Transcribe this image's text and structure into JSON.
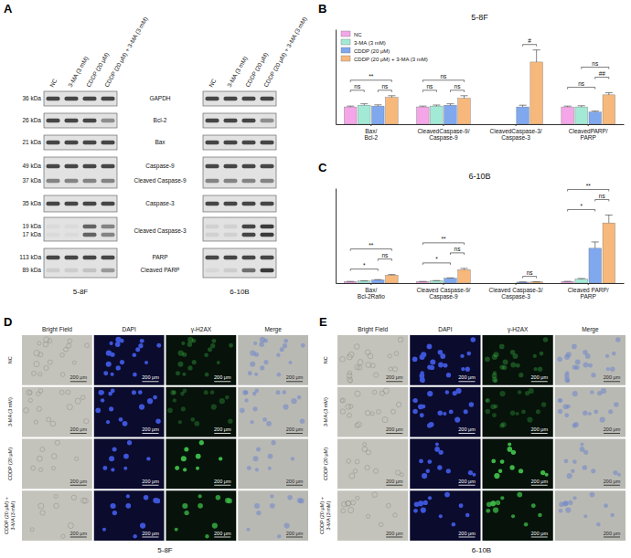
{
  "chart_data": [
    {
      "type": "bar",
      "panel_label": "B",
      "title": "5-8F",
      "categories": [
        "Bax/Bcl-2",
        "CleavedCaspase-9/Caspase-9",
        "CleavedCaspase-3/Caspase-3",
        "CleavedPARP/PARP"
      ],
      "series": [
        {
          "name": "NC",
          "color": "#f4a6e8",
          "values": [
            1,
            1,
            null,
            1
          ],
          "errors": [
            0.05,
            0.05,
            null,
            0.05
          ]
        },
        {
          "name": "3-MA (3 mM)",
          "color": "#a3ead6",
          "values": [
            1.1,
            1.05,
            null,
            1.0
          ],
          "errors": [
            0.08,
            0.06,
            null,
            0.07
          ]
        },
        {
          "name": "CDDP (20 μM)",
          "color": "#7fa8ef",
          "values": [
            1.05,
            1.1,
            1.0,
            0.7
          ],
          "errors": [
            0.07,
            0.08,
            0.1,
            0.06
          ]
        },
        {
          "name": "CDDP (20 μM) + 3-MA (3 mM)",
          "color": "#f7b87b",
          "values": [
            1.55,
            1.5,
            3.6,
            1.7
          ],
          "errors": [
            0.1,
            0.15,
            0.7,
            0.12
          ]
        }
      ],
      "ylim": [
        0,
        5.5
      ],
      "tick_labels": false,
      "legend": "top-left",
      "annotations": [
        {
          "text": "ns",
          "category": "Bax/Bcl-2",
          "between": [
            "NC",
            "3-MA (3 mM)"
          ]
        },
        {
          "text": "ns",
          "category": "Bax/Bcl-2",
          "between": [
            "CDDP (20 μM)",
            "CDDP (20 μM) + 3-MA (3 mM)"
          ]
        },
        {
          "text": "**",
          "category": "Bax/Bcl-2",
          "between": [
            "NC",
            "CDDP (20 μM) + 3-MA (3 mM)"
          ]
        },
        {
          "text": "ns",
          "category": "CleavedCaspase-9/Caspase-9",
          "between": [
            "NC",
            "3-MA (3 mM)"
          ]
        },
        {
          "text": "ns",
          "category": "CleavedCaspase-9/Caspase-9",
          "between": [
            "CDDP (20 μM)",
            "CDDP (20 μM) + 3-MA (3 mM)"
          ]
        },
        {
          "text": "ns",
          "category": "CleavedCaspase-9/Caspase-9",
          "between": [
            "NC",
            "CDDP (20 μM) + 3-MA (3 mM)"
          ]
        },
        {
          "text": "#",
          "category": "CleavedCaspase-3/Caspase-3",
          "between": [
            "CDDP (20 μM)",
            "CDDP (20 μM) + 3-MA (3 mM)"
          ]
        },
        {
          "text": "ns",
          "category": "CleavedPARP/PARP",
          "between": [
            "NC",
            "CDDP (20 μM)"
          ]
        },
        {
          "text": "##",
          "category": "CleavedPARP/PARP",
          "between": [
            "CDDP (20 μM)",
            "CDDP (20 μM) + 3-MA (3 mM)"
          ]
        },
        {
          "text": "ns",
          "category": "CleavedPARP/PARP",
          "between": [
            "3-MA (3 mM)",
            "CDDP (20 μM) + 3-MA (3 mM)"
          ]
        }
      ]
    },
    {
      "type": "bar",
      "panel_label": "C",
      "title": "6-10B",
      "categories": [
        "Bax/Bcl-2Ratio",
        "Cleaved Caspase-9/Caspase-9",
        "Cleaved Caspase-3/Caspase-3",
        "Cleaved PARP/PARP"
      ],
      "series": [
        {
          "name": "NC",
          "color": "#f4a6e8",
          "values": [
            1,
            1,
            null,
            1
          ],
          "errors": [
            0.05,
            0.05,
            null,
            0.1
          ]
        },
        {
          "name": "3-MA (3 mM)",
          "color": "#a3ead6",
          "values": [
            1.3,
            1.5,
            null,
            2.5
          ],
          "errors": [
            0.1,
            0.1,
            null,
            0.4
          ]
        },
        {
          "name": "CDDP (20 μM)",
          "color": "#7fa8ef",
          "values": [
            2.0,
            3.0,
            0.6,
            22
          ],
          "errors": [
            0.2,
            0.3,
            0.1,
            4
          ]
        },
        {
          "name": "CDDP (20 μM) + 3-MA (3 mM)",
          "color": "#f7b87b",
          "values": [
            5.0,
            8.5,
            0.7,
            38
          ],
          "errors": [
            0.4,
            0.8,
            0.1,
            5
          ]
        }
      ],
      "ylim": [
        0,
        60
      ],
      "tick_labels": false,
      "annotations": [
        {
          "text": "*",
          "category": "Bax/Bcl-2Ratio",
          "between": [
            "NC",
            "CDDP (20 μM)"
          ]
        },
        {
          "text": "ns",
          "category": "Bax/Bcl-2Ratio",
          "between": [
            "CDDP (20 μM)",
            "CDDP (20 μM) + 3-MA (3 mM)"
          ]
        },
        {
          "text": "**",
          "category": "Bax/Bcl-2Ratio",
          "between": [
            "NC",
            "CDDP (20 μM) + 3-MA (3 mM)"
          ]
        },
        {
          "text": "*",
          "category": "Cleaved Caspase-9/Caspase-9",
          "between": [
            "NC",
            "CDDP (20 μM)"
          ]
        },
        {
          "text": "ns",
          "category": "Cleaved Caspase-9/Caspase-9",
          "between": [
            "CDDP (20 μM)",
            "CDDP (20 μM) + 3-MA (3 mM)"
          ]
        },
        {
          "text": "**",
          "category": "Cleaved Caspase-9/Caspase-9",
          "between": [
            "NC",
            "CDDP (20 μM) + 3-MA (3 mM)"
          ]
        },
        {
          "text": "ns",
          "category": "Cleaved Caspase-3/Caspase-3",
          "between": [
            "CDDP (20 μM)",
            "CDDP (20 μM) + 3-MA (3 mM)"
          ]
        },
        {
          "text": "*",
          "category": "Cleaved PARP/PARP",
          "between": [
            "NC",
            "CDDP (20 μM)"
          ]
        },
        {
          "text": "ns",
          "category": "Cleaved PARP/PARP",
          "between": [
            "CDDP (20 μM)",
            "CDDP (20 μM) + 3-MA (3 mM)"
          ]
        },
        {
          "text": "**",
          "category": "Cleaved PARP/PARP",
          "between": [
            "NC",
            "CDDP (20 μM) + 3-MA (3 mM)"
          ]
        }
      ]
    }
  ],
  "blot": {
    "panel_label": "A",
    "lanes": [
      "NC",
      "3-MA (3 mM)",
      "CDDP (20 μM)",
      "CDDP (20 μM) + 3-MA (3 mM)"
    ],
    "cell_lines": [
      "5-8F",
      "6-10B"
    ],
    "rows": [
      {
        "proteins": [
          "GAPDH"
        ],
        "kda": [
          "36 kDa"
        ]
      },
      {
        "proteins": [
          "Bcl-2"
        ],
        "kda": [
          "26 kDa"
        ]
      },
      {
        "proteins": [
          "Bax"
        ],
        "kda": [
          "21 kDa"
        ]
      },
      {
        "proteins": [
          "Caspase-9",
          "Cleaved Caspase-9"
        ],
        "kda": [
          "49 kDa",
          "37 kDa"
        ]
      },
      {
        "proteins": [
          "Caspase-3"
        ],
        "kda": [
          "35 kDa"
        ]
      },
      {
        "proteins": [
          "Cleaved Caspase-3"
        ],
        "kda": [
          "19 kDa",
          "17 kDa"
        ]
      },
      {
        "proteins": [
          "PARP",
          "Cleaved PARP"
        ],
        "kda": [
          "113 kDa",
          "89 kDa"
        ]
      }
    ]
  },
  "microscopy": [
    {
      "panel_label": "D",
      "cell_line": "5-8F",
      "columns": [
        "Bright Field",
        "DAPI",
        "γ-H2AX",
        "Merge"
      ],
      "rows": [
        "NC",
        "3-MA (3 mM)",
        "CDDP (20 μM)",
        "CDDP (20 μM) + 3-MA (3 mM)"
      ],
      "scale_bar": "200 μm"
    },
    {
      "panel_label": "E",
      "cell_line": "6-10B",
      "columns": [
        "Bright Field",
        "DAPI",
        "γ-H2AX",
        "Merge"
      ],
      "rows": [
        "NC",
        "3-MA (3 mM)",
        "CDDP (20 μM)",
        "CDDP (20 μM) + 3-MA (3 mM)"
      ],
      "scale_bar": "200 μm"
    }
  ]
}
